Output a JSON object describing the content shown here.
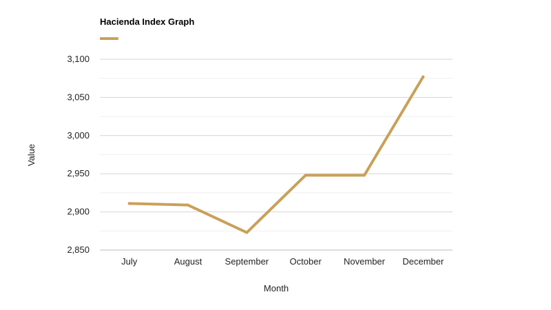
{
  "chart_data": {
    "type": "line",
    "title": "Hacienda Index Graph",
    "xlabel": "Month",
    "ylabel": "Value",
    "categories": [
      "July",
      "August",
      "September",
      "October",
      "November",
      "December"
    ],
    "series": [
      {
        "name": "Hacienda Index Graph",
        "color": "#c9a05a",
        "values": [
          2911,
          2909,
          2873,
          2948,
          2948,
          3077
        ]
      }
    ],
    "ylim": [
      2850,
      3100
    ],
    "yticks": [
      2850,
      2900,
      2950,
      3000,
      3050,
      3100
    ],
    "ytick_labels": [
      "2,850",
      "2,900",
      "2,950",
      "3,000",
      "3,050",
      "3,100"
    ],
    "grid": true,
    "legend": "top-left"
  }
}
